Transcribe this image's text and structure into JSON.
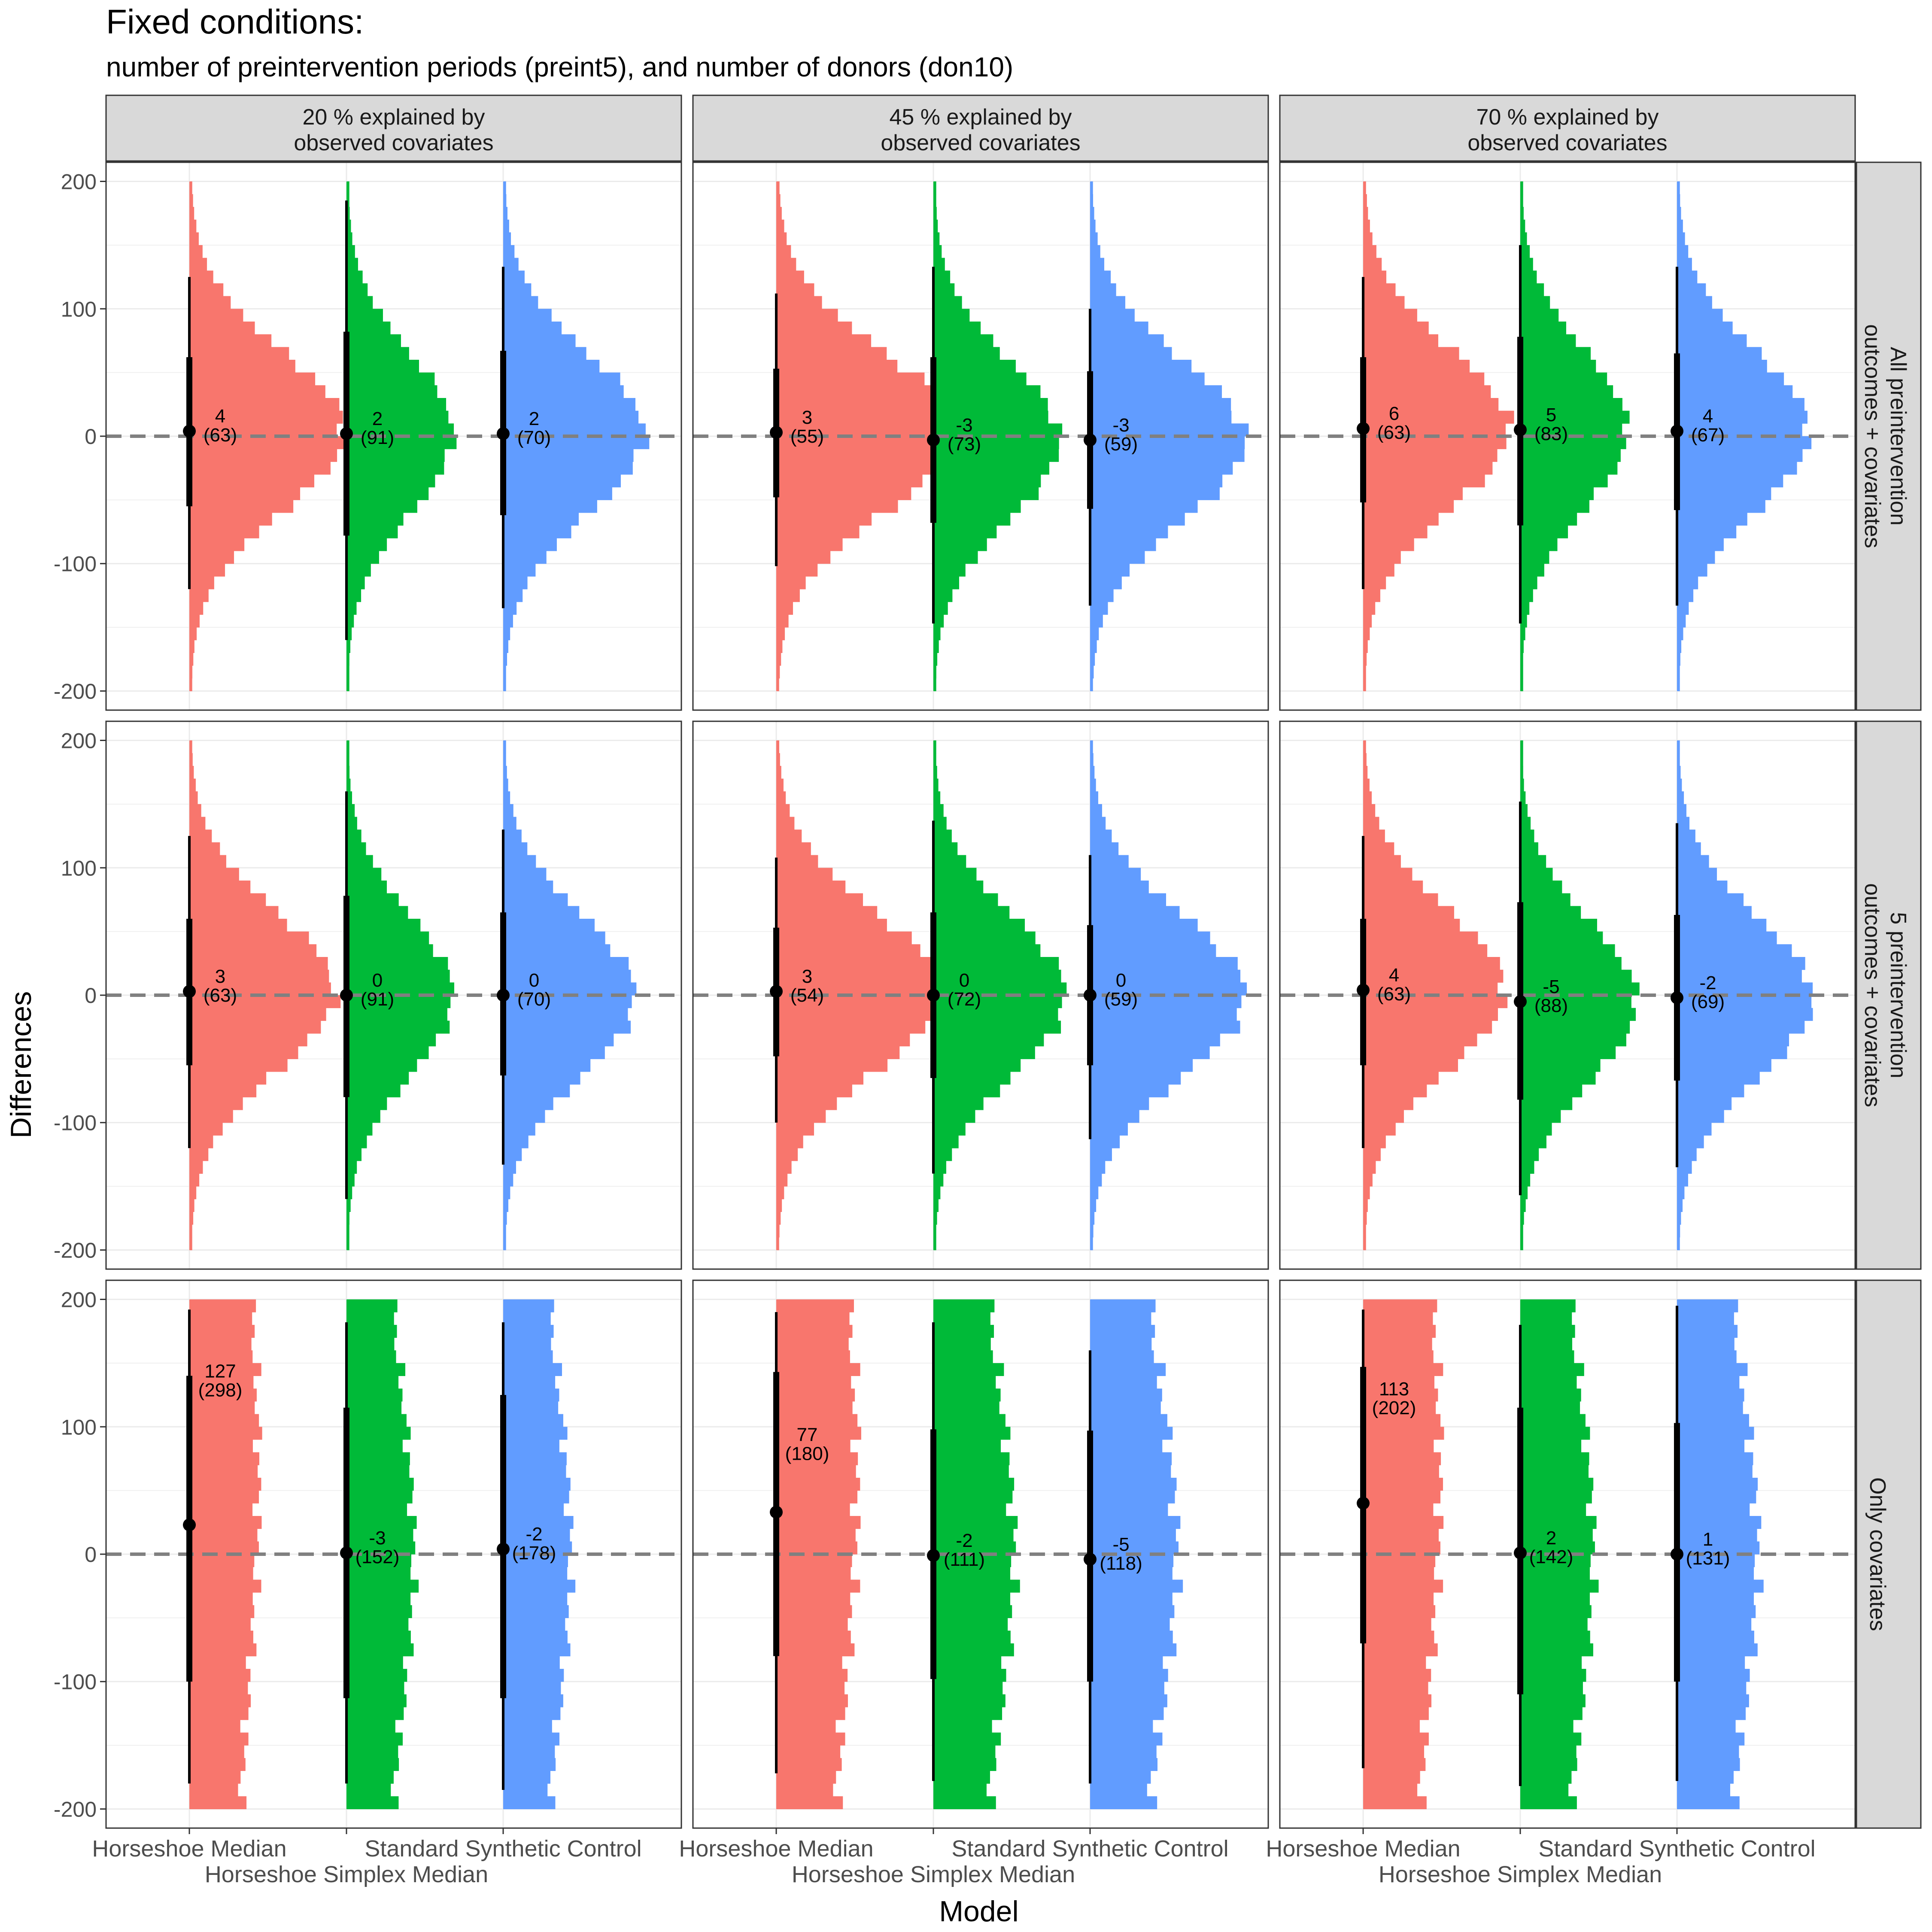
{
  "figure": {
    "title": "Fixed conditions:",
    "subtitle": "number of preintervention periods (preint5), and number of donors (don10)",
    "xlabel": "Model",
    "ylabel": "Differences"
  },
  "colors": {
    "Horseshoe Median": "#F8766D",
    "Horseshoe Simplex Median": "#00BA38",
    "Standard Synthetic Control": "#619CFF",
    "strip_fill": "#D9D9D9",
    "grid": "#EBEBEB",
    "zero_line": "#808080"
  },
  "chart_data": {
    "type": "faceted-violin-histogram",
    "facet_columns": [
      "20 % explained by\nobserved covariates",
      "45 % explained by\nobserved covariates",
      "70 % explained by\nobserved covariates"
    ],
    "facet_rows": [
      "All preintervention\noutcomes + covariates",
      "5 preintervention\noutcomes + covariates",
      "Only covariates"
    ],
    "models": [
      "Horseshoe Median",
      "Horseshoe Simplex Median",
      "Standard Synthetic Control"
    ],
    "x_tick_labels": [
      "Horseshoe Median",
      "Horseshoe Simplex Median",
      "Standard Synthetic Control"
    ],
    "y_ticks": [
      -200,
      -100,
      0,
      100,
      200
    ],
    "ylim": [
      -215,
      215
    ],
    "reference_line": 0,
    "grid": true,
    "legend": "none",
    "panels": [
      {
        "row": 0,
        "col": 0,
        "series": [
          {
            "model": "Horseshoe Median",
            "shape": "normal",
            "max_width": 0.8,
            "median": 4,
            "label_value": "4",
            "label_sd": "(63)",
            "thin": [
              -120,
              125
            ],
            "thick": [
              -55,
              62
            ]
          },
          {
            "model": "Horseshoe Simplex Median",
            "shape": "normal",
            "max_width": 0.55,
            "median": 2,
            "label_value": "2",
            "label_sd": "(91)",
            "thin": [
              -160,
              185
            ],
            "thick": [
              -78,
              82
            ]
          },
          {
            "model": "Standard Synthetic Control",
            "shape": "normal",
            "max_width": 0.73,
            "median": 2,
            "label_value": "2",
            "label_sd": "(70)",
            "thin": [
              -135,
              133
            ],
            "thick": [
              -62,
              67
            ]
          }
        ]
      },
      {
        "row": 0,
        "col": 1,
        "series": [
          {
            "model": "Horseshoe Median",
            "shape": "normal",
            "max_width": 0.93,
            "median": 3,
            "label_value": "3",
            "label_sd": "(55)",
            "thin": [
              -102,
              112
            ],
            "thick": [
              -48,
              53
            ]
          },
          {
            "model": "Horseshoe Simplex Median",
            "shape": "normal",
            "max_width": 0.65,
            "median": -3,
            "label_value": "-3",
            "label_sd": "(73)",
            "thin": [
              -147,
              133
            ],
            "thick": [
              -68,
              62
            ]
          },
          {
            "model": "Standard Synthetic Control",
            "shape": "normal",
            "max_width": 0.8,
            "median": -3,
            "label_value": "-3",
            "label_sd": "(59)",
            "thin": [
              -133,
              100
            ],
            "thick": [
              -57,
              51
            ]
          }
        ]
      },
      {
        "row": 0,
        "col": 2,
        "series": [
          {
            "model": "Horseshoe Median",
            "shape": "normal",
            "max_width": 0.75,
            "median": 6,
            "label_value": "6",
            "label_sd": "(63)",
            "thin": [
              -120,
              125
            ],
            "thick": [
              -52,
              62
            ]
          },
          {
            "model": "Horseshoe Simplex Median",
            "shape": "normal",
            "max_width": 0.55,
            "median": 5,
            "label_value": "5",
            "label_sd": "(83)",
            "thin": [
              -147,
              150
            ],
            "thick": [
              -70,
              78
            ]
          },
          {
            "model": "Standard Synthetic Control",
            "shape": "normal",
            "max_width": 0.68,
            "median": 4,
            "label_value": "4",
            "label_sd": "(67)",
            "thin": [
              -133,
              133
            ],
            "thick": [
              -58,
              65
            ]
          }
        ]
      },
      {
        "row": 1,
        "col": 0,
        "series": [
          {
            "model": "Horseshoe Median",
            "shape": "normal",
            "max_width": 0.75,
            "median": 3,
            "label_value": "3",
            "label_sd": "(63)",
            "thin": [
              -120,
              125
            ],
            "thick": [
              -55,
              60
            ]
          },
          {
            "model": "Horseshoe Simplex Median",
            "shape": "normal",
            "max_width": 0.55,
            "median": 0,
            "label_value": "0",
            "label_sd": "(91)",
            "thin": [
              -160,
              160
            ],
            "thick": [
              -80,
              78
            ]
          },
          {
            "model": "Standard Synthetic Control",
            "shape": "normal",
            "max_width": 0.68,
            "median": 0,
            "label_value": "0",
            "label_sd": "(70)",
            "thin": [
              -133,
              130
            ],
            "thick": [
              -63,
              65
            ]
          }
        ]
      },
      {
        "row": 1,
        "col": 1,
        "series": [
          {
            "model": "Horseshoe Median",
            "shape": "normal",
            "max_width": 0.85,
            "median": 3,
            "label_value": "3",
            "label_sd": "(54)",
            "thin": [
              -100,
              108
            ],
            "thick": [
              -48,
              53
            ]
          },
          {
            "model": "Horseshoe Simplex Median",
            "shape": "normal",
            "max_width": 0.68,
            "median": 0,
            "label_value": "0",
            "label_sd": "(72)",
            "thin": [
              -140,
              137
            ],
            "thick": [
              -65,
              65
            ]
          },
          {
            "model": "Standard Synthetic Control",
            "shape": "normal",
            "max_width": 0.8,
            "median": 0,
            "label_value": "0",
            "label_sd": "(59)",
            "thin": [
              -113,
              110
            ],
            "thick": [
              -55,
              55
            ]
          }
        ]
      },
      {
        "row": 1,
        "col": 2,
        "series": [
          {
            "model": "Horseshoe Median",
            "shape": "normal",
            "max_width": 0.73,
            "median": 4,
            "label_value": "4",
            "label_sd": "(63)",
            "thin": [
              -120,
              125
            ],
            "thick": [
              -55,
              60
            ]
          },
          {
            "model": "Horseshoe Simplex Median",
            "shape": "normal",
            "max_width": 0.6,
            "median": -5,
            "label_value": "-5",
            "label_sd": "(88)",
            "thin": [
              -157,
              152
            ],
            "thick": [
              -82,
              73
            ]
          },
          {
            "model": "Standard Synthetic Control",
            "shape": "normal",
            "max_width": 0.7,
            "median": -2,
            "label_value": "-2",
            "label_sd": "(69)",
            "thin": [
              -135,
              135
            ],
            "thick": [
              -67,
              63
            ]
          }
        ]
      },
      {
        "row": 2,
        "col": 0,
        "series": [
          {
            "model": "Horseshoe Median",
            "shape": "flat",
            "max_width": 0.36,
            "median": 23,
            "label_value": "127",
            "label_sd": "(298)",
            "label_y": 132,
            "thin": [
              -180,
              192
            ],
            "thick": [
              -100,
              140
            ]
          },
          {
            "model": "Horseshoe Simplex Median",
            "shape": "wide",
            "max_width": 0.35,
            "median": 1,
            "label_value": "-3",
            "label_sd": "(152)",
            "thin": [
              -180,
              182
            ],
            "thick": [
              -113,
              115
            ]
          },
          {
            "model": "Standard Synthetic Control",
            "shape": "wide",
            "max_width": 0.35,
            "median": 4,
            "label_value": "-2",
            "label_sd": "(178)",
            "thin": [
              -185,
              182
            ],
            "thick": [
              -113,
              125
            ]
          }
        ]
      },
      {
        "row": 2,
        "col": 1,
        "series": [
          {
            "model": "Horseshoe Median",
            "shape": "flat",
            "max_width": 0.42,
            "median": 33,
            "label_value": "77",
            "label_sd": "(180)",
            "label_y": 82,
            "thin": [
              -172,
              190
            ],
            "thick": [
              -80,
              143
            ]
          },
          {
            "model": "Horseshoe Simplex Median",
            "shape": "wide",
            "max_width": 0.42,
            "median": -1,
            "label_value": "-2",
            "label_sd": "(111)",
            "thin": [
              -178,
              182
            ],
            "thick": [
              -98,
              98
            ]
          },
          {
            "model": "Standard Synthetic Control",
            "shape": "wide",
            "max_width": 0.45,
            "median": -4,
            "label_value": "-5",
            "label_sd": "(118)",
            "thin": [
              -180,
              160
            ],
            "thick": [
              -100,
              97
            ]
          },
          {
            "model": "Standard Synthetic Control",
            "shape": "none",
            "max_width": 0,
            "median": 0,
            "label_value": "",
            "label_sd": "",
            "thin": [
              0,
              0
            ],
            "thick": [
              0,
              0
            ]
          }
        ]
      },
      {
        "row": 2,
        "col": 2,
        "series": [
          {
            "model": "Horseshoe Median",
            "shape": "flat",
            "max_width": 0.4,
            "median": 40,
            "label_value": "113",
            "label_sd": "(202)",
            "label_y": 118,
            "thin": [
              -168,
              192
            ],
            "thick": [
              -70,
              147
            ]
          },
          {
            "model": "Horseshoe Simplex Median",
            "shape": "wide",
            "max_width": 0.38,
            "median": 1,
            "label_value": "2",
            "label_sd": "(142)",
            "thin": [
              -182,
              180
            ],
            "thick": [
              -110,
              115
            ]
          },
          {
            "model": "Standard Synthetic Control",
            "shape": "wide",
            "max_width": 0.42,
            "median": 0,
            "label_value": "1",
            "label_sd": "(131)",
            "thin": [
              -178,
              195
            ],
            "thick": [
              -100,
              103
            ]
          }
        ]
      }
    ]
  }
}
